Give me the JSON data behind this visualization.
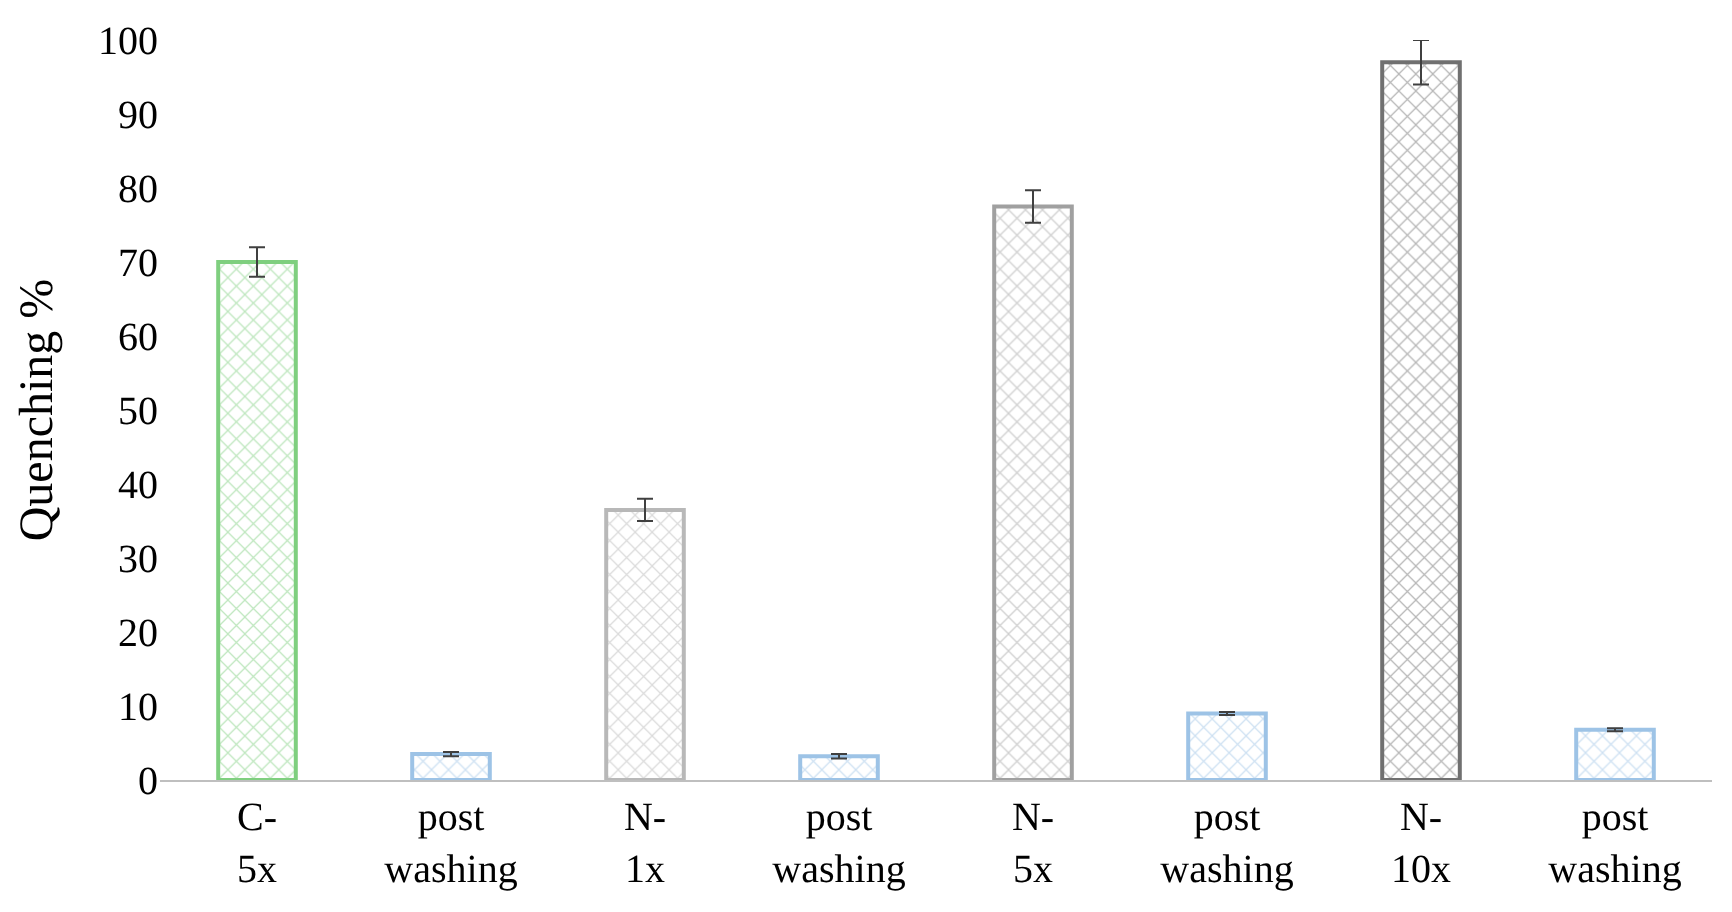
{
  "chart_data": {
    "type": "bar",
    "ylabel": "Quenching %",
    "categories": [
      "C-\n5x",
      "post\nwashing",
      "N-\n1x",
      "post\nwashing",
      "N-\n5x",
      "post\nwashing",
      "N-\n10x",
      "post\nwashing"
    ],
    "values": [
      70,
      3.5,
      36.5,
      3.2,
      77.5,
      9,
      97,
      6.8
    ],
    "errors": [
      2,
      0.3,
      1.5,
      0.3,
      2.2,
      0.2,
      3,
      0.2
    ],
    "colors": [
      "#7fcf7f",
      "#9dc3e6",
      "#b8b8b8",
      "#9dc3e6",
      "#a0a0a0",
      "#9dc3e6",
      "#707070",
      "#9dc3e6"
    ],
    "ylim": [
      0,
      100
    ],
    "yticks": [
      0,
      10,
      20,
      30,
      40,
      50,
      60,
      70,
      80,
      90,
      100
    ]
  }
}
